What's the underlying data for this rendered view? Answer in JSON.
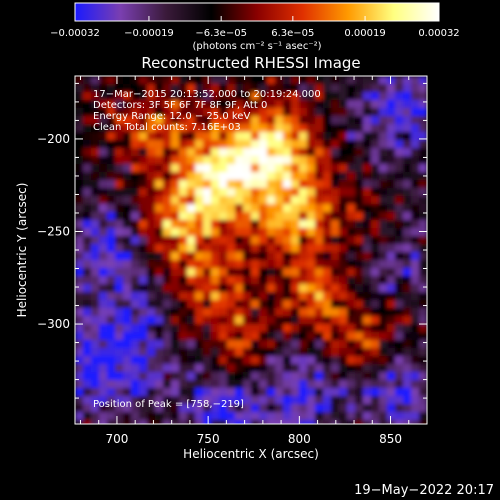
{
  "chart_data": {
    "type": "heatmap",
    "title": "Reconstructed RHESSI Image",
    "xlabel": "Heliocentric X (arcsec)",
    "ylabel": "Heliocentric Y (arcsec)",
    "xlim": [
      677,
      870
    ],
    "ylim": [
      -354,
      -166
    ],
    "x_ticks": [
      {
        "value": 700,
        "label": "700"
      },
      {
        "value": 750,
        "label": "750"
      },
      {
        "value": 800,
        "label": "800"
      },
      {
        "value": 850,
        "label": "850"
      }
    ],
    "y_ticks": [
      {
        "value": -200,
        "label": "−200"
      },
      {
        "value": -250,
        "label": "−250"
      },
      {
        "value": -300,
        "label": "−300"
      }
    ],
    "colorbar": {
      "range": [
        -0.00032,
        0.00032
      ],
      "unit_label": "(photons cm⁻² s⁻¹ asec⁻²)",
      "ticks": [
        {
          "value": -0.00032,
          "label": "−0.00032"
        },
        {
          "value": -0.00019,
          "label": "−0.00019"
        },
        {
          "value": -6.3e-05,
          "label": "−6.3e−05"
        },
        {
          "value": 6.3e-05,
          "label": "6.3e−05"
        },
        {
          "value": 0.00019,
          "label": "0.00019"
        },
        {
          "value": 0.00032,
          "label": "0.00032"
        }
      ],
      "colors": [
        "#1a1aff",
        "#7a3fb0",
        "#3a1a3a",
        "#000000",
        "#8a0000",
        "#e03000",
        "#ff9a00",
        "#ffff80",
        "#ffffff"
      ]
    },
    "annotations": {
      "time": "17−Mar−2015 20:13:52.000 to 20:19:24.000",
      "detectors": "Detectors: 3F 5F 6F 7F 8F 9F, Att 0",
      "energy": "Energy Range: 12.0 − 25.0 keV",
      "method": "Clean     Total counts: 7.16E+03",
      "peak": "Position of Peak = [758,−219]"
    },
    "peak_position": [
      758,
      -219
    ]
  },
  "footer": {
    "date": "19−May−2022 20:17"
  }
}
